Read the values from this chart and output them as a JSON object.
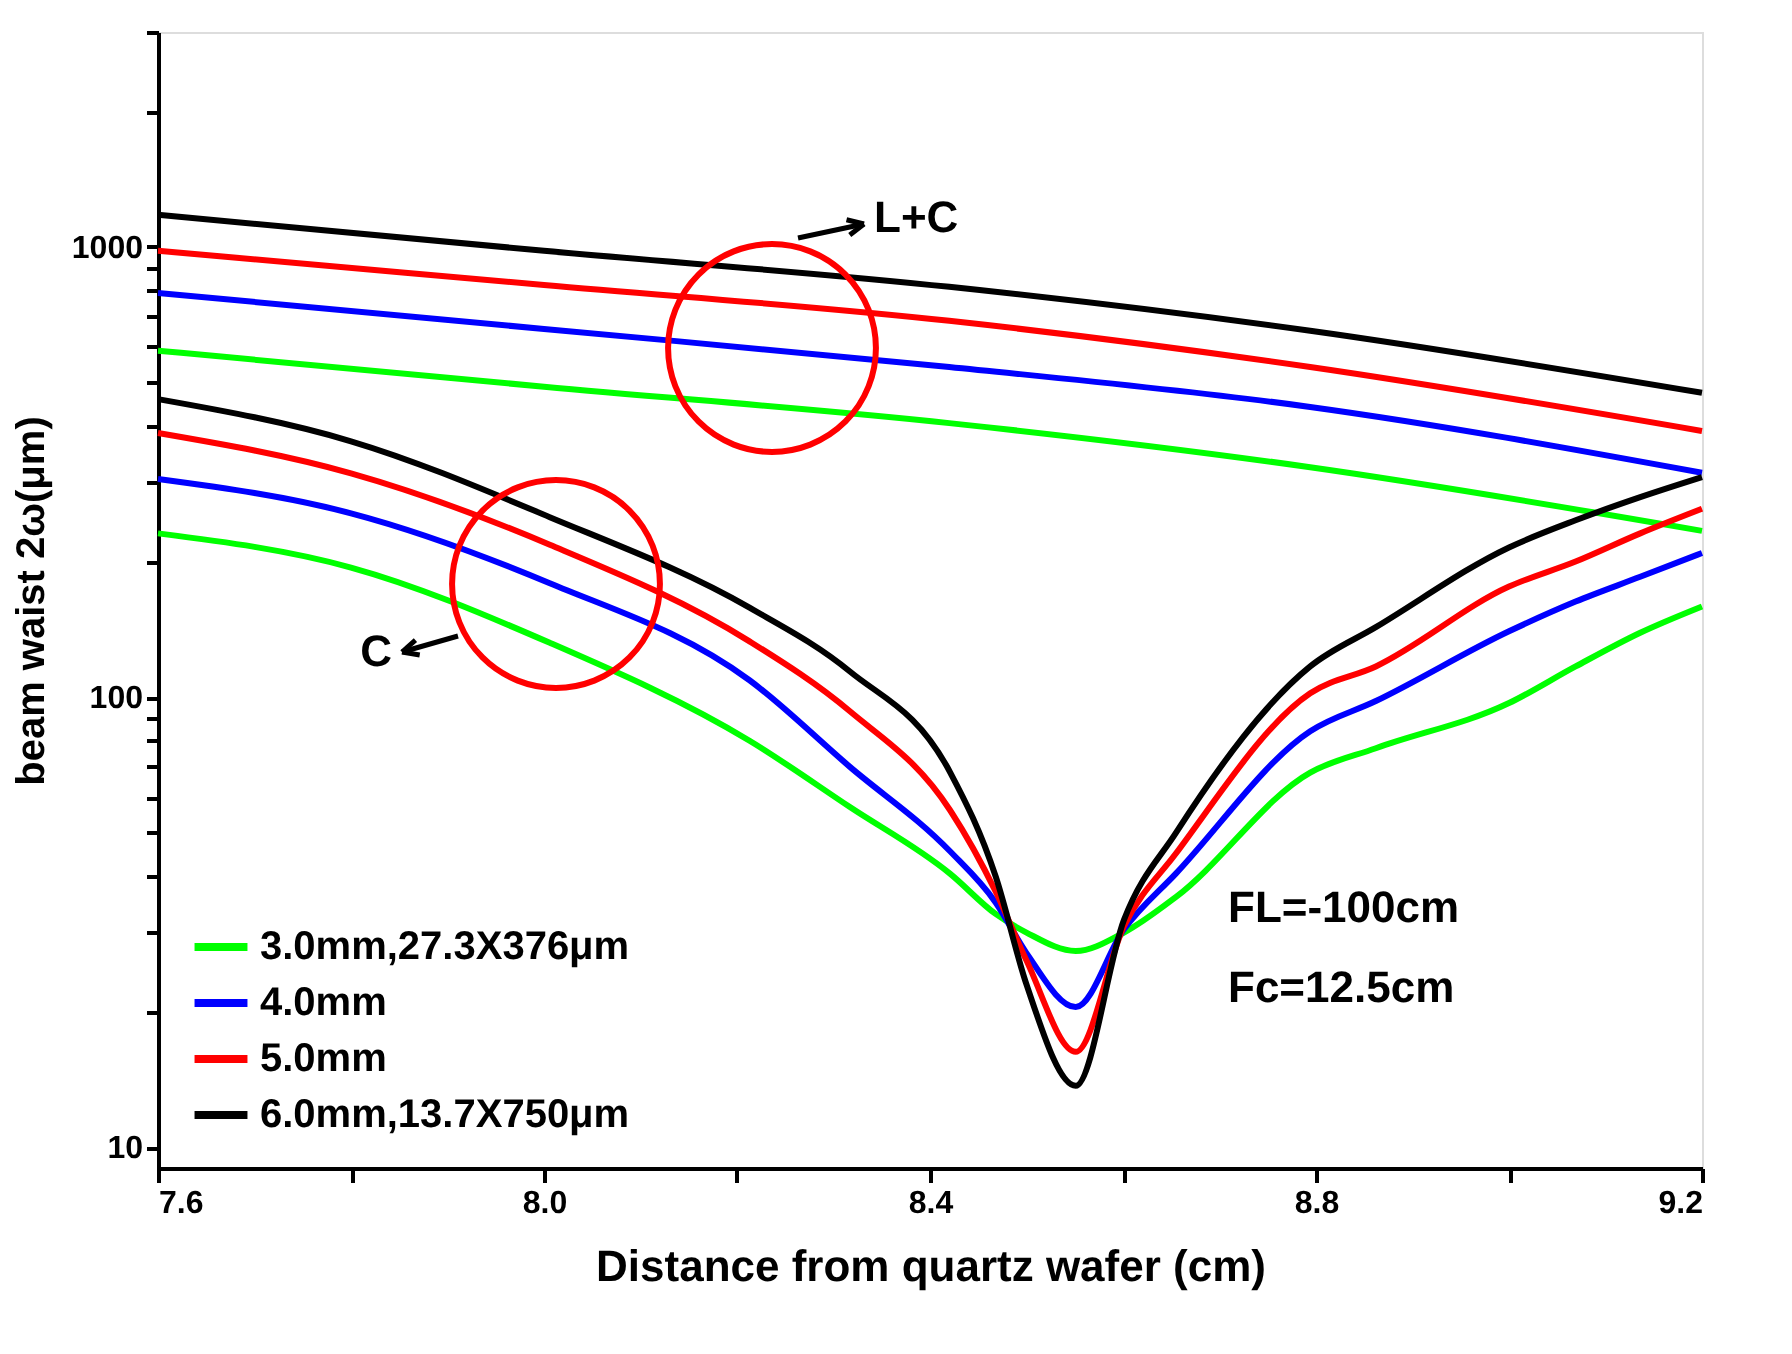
{
  "chart_data": {
    "type": "line",
    "xlabel": "Distance from quartz wafer (cm)",
    "ylabel": "beam waist 2ω(μm)",
    "xlim": [
      7.6,
      9.2
    ],
    "xticks": [
      7.6,
      {
        "value": 7.8,
        "label": null
      },
      {
        "value": 8,
        "label": "8.0"
      },
      {
        "value": 8.2,
        "label": null
      },
      8.4,
      {
        "value": 8.6,
        "label": null
      },
      8.8,
      {
        "value": 9.0,
        "label": null
      },
      9.2
    ],
    "ylim": [
      9,
      3000
    ],
    "yticks": [
      10,
      {
        "value": 20,
        "label": null
      },
      {
        "value": 30,
        "label": null
      },
      {
        "value": 40,
        "label": null
      },
      {
        "value": 50,
        "label": null
      },
      {
        "value": 60,
        "label": null
      },
      {
        "value": 70,
        "label": null
      },
      {
        "value": 80,
        "label": null
      },
      {
        "value": 90,
        "label": null
      },
      100,
      {
        "value": 200,
        "label": null
      },
      {
        "value": 300,
        "label": null
      },
      {
        "value": 400,
        "label": null
      },
      {
        "value": 500,
        "label": null
      },
      {
        "value": 600,
        "label": null
      },
      {
        "value": 700,
        "label": null
      },
      {
        "value": 800,
        "label": null
      },
      {
        "value": 900,
        "label": null
      },
      1000,
      {
        "value": 2000,
        "label": null
      },
      {
        "value": 3000,
        "label": null
      }
    ],
    "log": "y",
    "grid": false,
    "legend": "bottom left",
    "marker": "none",
    "line_style": "solid",
    "series": [
      {
        "name": "3.0mm,27.3X376μm",
        "color": "#00ff00",
        "x": [
          7.6,
          8.0,
          8.42,
          8.794,
          9.2
        ],
        "values": [
          588,
          489,
          406,
          324,
          234
        ]
      },
      {
        "name": "4.0mm",
        "color": "#0000ff",
        "x": [
          7.6,
          8.0,
          8.42,
          8.794,
          9.2
        ],
        "values": [
          790,
          657,
          541,
          441,
          315
        ]
      },
      {
        "name": "5.0mm",
        "color": "#ff0000",
        "x": [
          7.6,
          8.0,
          8.42,
          8.794,
          9.2
        ],
        "values": [
          980,
          823,
          685,
          541,
          390
        ]
      },
      {
        "name": "6.0mm,13.7X750μm",
        "color": "#000000",
        "x": [
          7.6,
          8.0,
          8.42,
          8.794,
          9.2
        ],
        "values": [
          1178,
          980,
          815,
          651,
          474
        ]
      },
      {
        "color": "#00ff00",
        "x": [
          7.6,
          7.8,
          8.006,
          8.213,
          8.317,
          8.421,
          8.468,
          8.5,
          8.551,
          8.601,
          8.655,
          8.794,
          8.862,
          9.0,
          9.069,
          9.136,
          9.2
        ],
        "values": [
          231,
          194,
          132,
          80,
          57,
          40.5,
          33,
          30,
          27.3,
          30,
          36,
          68,
          77,
          97,
          117,
          139,
          159
        ]
      },
      {
        "color": "#0000ff",
        "x": [
          7.6,
          7.8,
          8.006,
          8.213,
          8.317,
          8.421,
          8.468,
          8.5,
          8.551,
          8.601,
          8.655,
          8.794,
          8.862,
          9.0,
          9.069,
          9.136,
          9.2
        ],
        "values": [
          305,
          256,
          179,
          109,
          70,
          45.4,
          35,
          27,
          20.5,
          30.5,
          40.6,
          84,
          98,
          140,
          163,
          185,
          209
        ]
      },
      {
        "color": "#ff0000",
        "x": [
          7.6,
          7.8,
          8.006,
          8.213,
          8.317,
          8.421,
          8.468,
          8.5,
          8.551,
          8.601,
          8.655,
          8.794,
          8.862,
          9.0,
          9.069,
          9.136,
          9.2
        ],
        "values": [
          386,
          314,
          218,
          133,
          93,
          56,
          37,
          26,
          16.3,
          31,
          45,
          102,
          117,
          176,
          200,
          231,
          262
        ]
      },
      {
        "color": "#000000",
        "x": [
          7.6,
          7.8,
          8.006,
          8.213,
          8.317,
          8.421,
          8.468,
          8.5,
          8.551,
          8.601,
          8.655,
          8.794,
          8.862,
          9.0,
          9.069,
          9.136,
          9.2
        ],
        "values": [
          459,
          370,
          251,
          158,
          114,
          68,
          40,
          23,
          13.7,
          32,
          50,
          117,
          143,
          215,
          247,
          278,
          308
        ]
      }
    ],
    "annotations": [
      "L+C",
      "C",
      "FL=-100cm",
      "Fc=12.5cm"
    ]
  }
}
